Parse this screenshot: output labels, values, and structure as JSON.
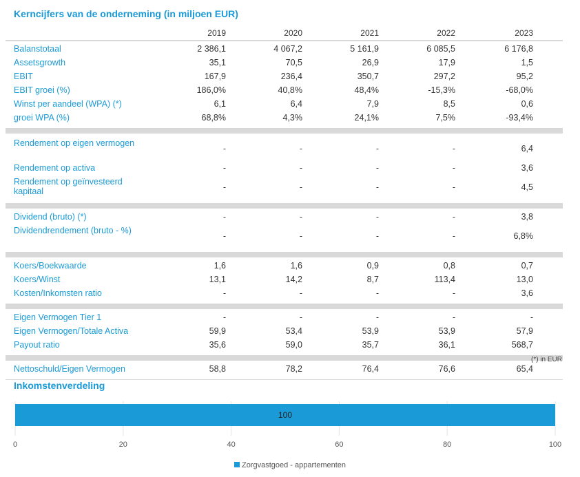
{
  "title": "Kerncijfers van de onderneming (in miljoen EUR)",
  "years": [
    "2019",
    "2020",
    "2021",
    "2022",
    "2023"
  ],
  "groups": [
    {
      "rows": [
        {
          "label": "Balanstotaal",
          "values": [
            "2 386,1",
            "4 067,2",
            "5 161,9",
            "6 085,5",
            "6 176,8"
          ]
        },
        {
          "label": "Assetsgrowth",
          "values": [
            "35,1",
            "70,5",
            "26,9",
            "17,9",
            "1,5"
          ]
        },
        {
          "label": "EBIT",
          "values": [
            "167,9",
            "236,4",
            "350,7",
            "297,2",
            "95,2"
          ]
        },
        {
          "label": "EBIT groei (%)",
          "values": [
            "186,0%",
            "40,8%",
            "48,4%",
            "-15,3%",
            "-68,0%"
          ]
        },
        {
          "label": "Winst per aandeel (WPA) (*)",
          "values": [
            "6,1",
            "6,4",
            "7,9",
            "8,5",
            "0,6"
          ]
        },
        {
          "label": "groei WPA (%)",
          "values": [
            "68,8%",
            "4,3%",
            "24,1%",
            "7,5%",
            "-93,4%"
          ]
        }
      ]
    },
    {
      "rows": [
        {
          "label": "Rendement op eigen vermogen",
          "values": [
            "-",
            "-",
            "-",
            "-",
            "6,4"
          ]
        },
        {
          "label": "Rendement op activa",
          "values": [
            "-",
            "-",
            "-",
            "-",
            "3,6"
          ]
        },
        {
          "label": "Rendement op geïnvesteerd kapitaal",
          "values": [
            "-",
            "-",
            "-",
            "-",
            "4,5"
          ]
        }
      ]
    },
    {
      "rows": [
        {
          "label": "Dividend (bruto) (*)",
          "values": [
            "-",
            "-",
            "-",
            "-",
            "3,8"
          ]
        },
        {
          "label": "Dividendrendement (bruto - %)",
          "values": [
            "-",
            "-",
            "-",
            "-",
            "6,8%"
          ]
        }
      ]
    },
    {
      "rows": [
        {
          "label": "Koers/Boekwaarde",
          "values": [
            "1,6",
            "1,6",
            "0,9",
            "0,8",
            "0,7"
          ]
        },
        {
          "label": "Koers/Winst",
          "values": [
            "13,1",
            "14,2",
            "8,7",
            "113,4",
            "13,0"
          ]
        },
        {
          "label": "Kosten/Inkomsten ratio",
          "values": [
            "-",
            "-",
            "-",
            "-",
            "3,6"
          ]
        }
      ]
    },
    {
      "rows": [
        {
          "label": "Eigen Vermogen Tier 1",
          "values": [
            "-",
            "-",
            "-",
            "-",
            "-"
          ]
        },
        {
          "label": "Eigen Vermogen/Totale Activa",
          "values": [
            "59,9",
            "53,4",
            "53,9",
            "53,9",
            "57,9"
          ]
        },
        {
          "label": "Payout ratio",
          "values": [
            "35,6",
            "59,0",
            "35,7",
            "36,1",
            "568,7"
          ]
        }
      ]
    },
    {
      "rows": [
        {
          "label": "Nettoschuld/Eigen Vermogen",
          "values": [
            "58,8",
            "78,2",
            "76,4",
            "76,6",
            "65,4"
          ]
        }
      ]
    }
  ],
  "note": "(*) in EUR",
  "income_title": "Inkomstenverdeling",
  "chart_data": {
    "type": "bar",
    "orientation": "horizontal",
    "stacked": true,
    "series": [
      {
        "name": "Zorgvastgoed - appartementen",
        "values": [
          100
        ],
        "color": "#1a9ad6"
      }
    ],
    "data_labels": [
      "100"
    ],
    "xlim": [
      0,
      100
    ],
    "xticks": [
      "0",
      "20",
      "40",
      "60",
      "80",
      "100"
    ],
    "grid": true,
    "legend": "bottom"
  }
}
